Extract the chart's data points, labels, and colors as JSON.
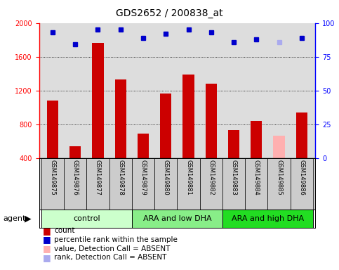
{
  "title": "GDS2652 / 200838_at",
  "samples": [
    "GSM149875",
    "GSM149876",
    "GSM149877",
    "GSM149878",
    "GSM149879",
    "GSM149880",
    "GSM149881",
    "GSM149882",
    "GSM149883",
    "GSM149884",
    "GSM149885",
    "GSM149886"
  ],
  "bar_values": [
    1080,
    540,
    1760,
    1330,
    690,
    1160,
    1390,
    1280,
    730,
    840,
    660,
    940
  ],
  "bar_colors": [
    "#cc0000",
    "#cc0000",
    "#cc0000",
    "#cc0000",
    "#cc0000",
    "#cc0000",
    "#cc0000",
    "#cc0000",
    "#cc0000",
    "#cc0000",
    "#ffb0b0",
    "#cc0000"
  ],
  "dot_values": [
    93,
    84,
    95,
    95,
    89,
    92,
    95,
    93,
    86,
    88,
    86,
    89
  ],
  "dot_colors": [
    "#0000cc",
    "#0000cc",
    "#0000cc",
    "#0000cc",
    "#0000cc",
    "#0000cc",
    "#0000cc",
    "#0000cc",
    "#0000cc",
    "#0000cc",
    "#aaaaee",
    "#0000cc"
  ],
  "ylim_left": [
    400,
    2000
  ],
  "ylim_right": [
    0,
    100
  ],
  "yticks_left": [
    400,
    800,
    1200,
    1600,
    2000
  ],
  "yticks_right": [
    0,
    25,
    50,
    75,
    100
  ],
  "groups": [
    {
      "label": "control",
      "start": 0,
      "end": 3,
      "color": "#ccffcc"
    },
    {
      "label": "ARA and low DHA",
      "start": 4,
      "end": 7,
      "color": "#88ee88"
    },
    {
      "label": "ARA and high DHA",
      "start": 8,
      "end": 11,
      "color": "#22dd22"
    }
  ],
  "legend_items": [
    {
      "label": "count",
      "color": "#cc0000"
    },
    {
      "label": "percentile rank within the sample",
      "color": "#0000cc"
    },
    {
      "label": "value, Detection Call = ABSENT",
      "color": "#ffb0b0"
    },
    {
      "label": "rank, Detection Call = ABSENT",
      "color": "#aaaaee"
    }
  ],
  "plot_bg": "#dddddd",
  "xlabels_bg": "#cccccc",
  "bar_width": 0.5,
  "dot_size": 5,
  "gridline_style": "dotted",
  "left_spine_color": "red",
  "right_spine_color": "blue",
  "tick_color_left": "red",
  "tick_color_right": "blue",
  "title_fontsize": 10,
  "tick_fontsize": 7,
  "label_fontsize": 7,
  "group_fontsize": 8
}
